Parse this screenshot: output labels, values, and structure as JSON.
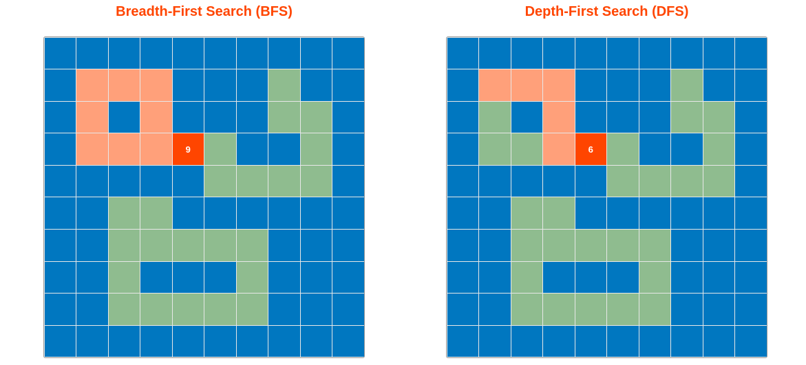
{
  "panels": [
    {
      "title": "Breadth-First Search (BFS)",
      "current": {
        "row": 3,
        "col": 4,
        "step": "9"
      },
      "grid": [
        "WWWWWWWWWW",
        "WVVVWWWLWW",
        "WVWVWWWLLW",
        "WVVVCLWWLW",
        "WWWWWLLLLW",
        "WWLLWWWWWW",
        "WWLLLLLWWW",
        "WWLWWWLWWW",
        "WWLLLLLWWW",
        "WWWWWWWWWW"
      ]
    },
    {
      "title": "Depth-First Search (DFS)",
      "current": {
        "row": 3,
        "col": 4,
        "step": "6"
      },
      "grid": [
        "WWWWWWWWWW",
        "WVVVWWWLWW",
        "WLWVWWWLLW",
        "WLLVCLWWLW",
        "WWWWWLLLLW",
        "WWLLWWWWWW",
        "WWLLLLLWWW",
        "WWLWWWLWWW",
        "WWLLLLLWWW",
        "WWWWWWWWWW"
      ]
    }
  ],
  "colors": {
    "W": "#0077c0",
    "L": "#8fbc8f",
    "V": "#ffa07a",
    "C": "#ff4500"
  }
}
